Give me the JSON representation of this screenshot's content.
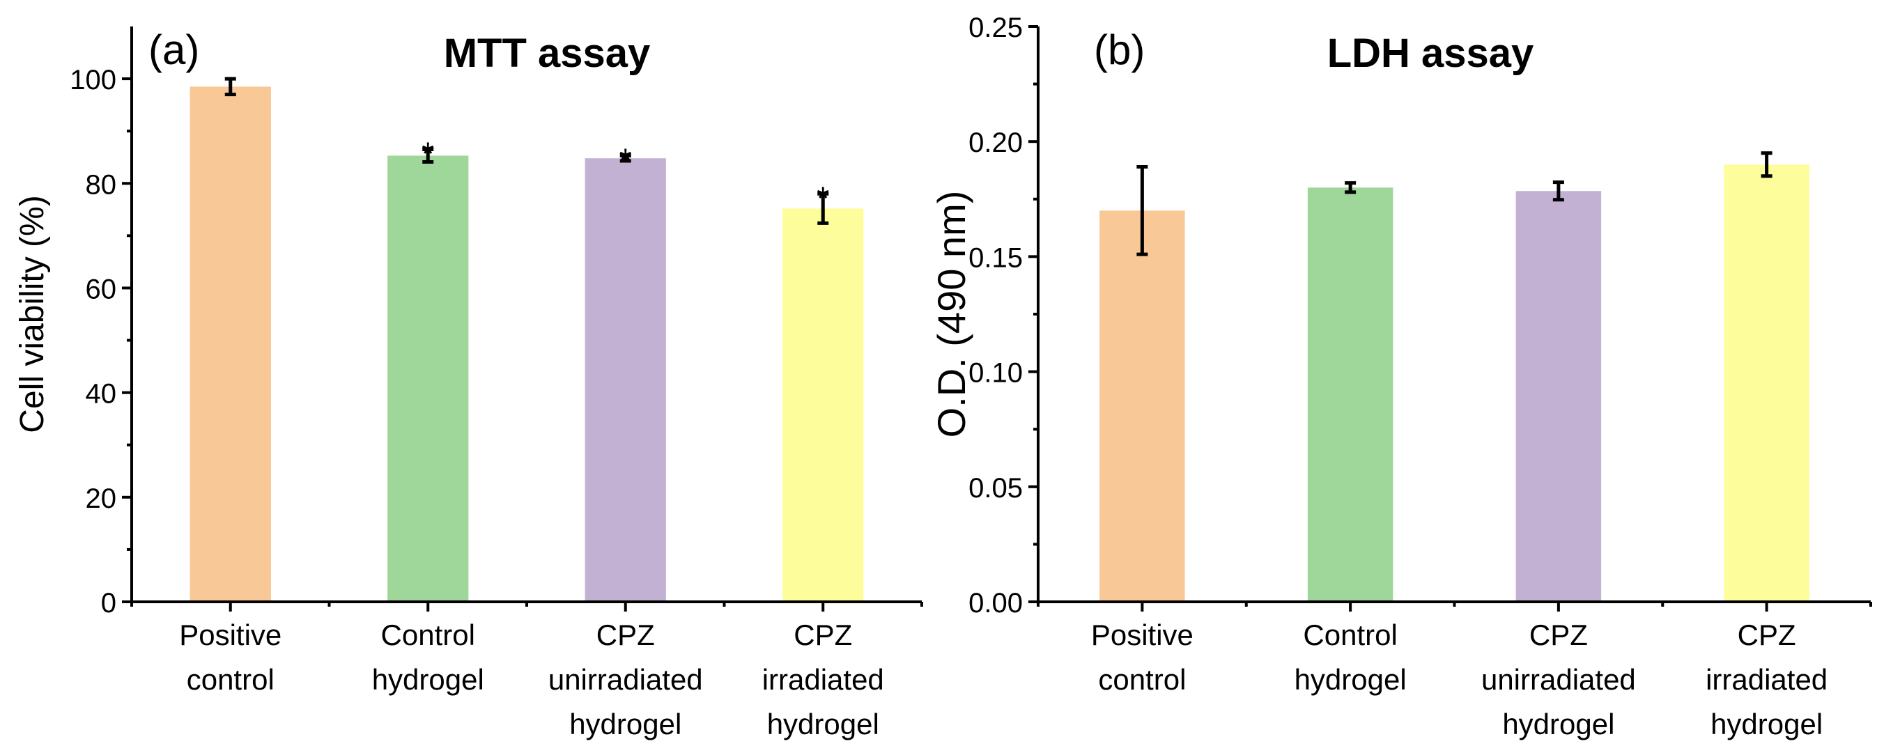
{
  "chart_data": [
    {
      "type": "bar",
      "panel_label": "(a)",
      "title": "MTT assay",
      "xlabel": "",
      "ylabel": "Cell viability (%)",
      "ylim": [
        0,
        110
      ],
      "yticks": [
        0,
        20,
        40,
        60,
        80,
        100
      ],
      "ytick_labels": [
        "0",
        "20",
        "40",
        "60",
        "80",
        "100"
      ],
      "categories": [
        [
          "Positive",
          "control"
        ],
        [
          "Control",
          "hydrogel"
        ],
        [
          "CPZ",
          "unirradiated",
          "hydrogel"
        ],
        [
          "CPZ",
          "irradiated",
          "hydrogel"
        ]
      ],
      "values": [
        98.5,
        85.3,
        84.8,
        75.2
      ],
      "errors": [
        1.5,
        1.2,
        0.5,
        2.8
      ],
      "annotations": [
        "",
        "*",
        "*",
        "*"
      ],
      "colors": [
        "#F9C897",
        "#9FD79B",
        "#C3B1D4",
        "#FDFD9B"
      ],
      "grid": false
    },
    {
      "type": "bar",
      "panel_label": "(b)",
      "title": "LDH assay",
      "xlabel": "",
      "ylabel": "O.D. (490 nm)",
      "ylim": [
        0,
        0.25
      ],
      "yticks": [
        0,
        0.05,
        0.1,
        0.15,
        0.2,
        0.25
      ],
      "ytick_labels": [
        "0.00",
        "0.05",
        "0.10",
        "0.15",
        "0.20",
        "0.25"
      ],
      "categories": [
        [
          "Positive",
          "control"
        ],
        [
          "Control",
          "hydrogel"
        ],
        [
          "CPZ",
          "unirradiated",
          "hydrogel"
        ],
        [
          "CPZ",
          "irradiated",
          "hydrogel"
        ]
      ],
      "values": [
        0.17,
        0.18,
        0.1785,
        0.19
      ],
      "errors": [
        0.019,
        0.002,
        0.0038,
        0.005
      ],
      "annotations": [
        "",
        "",
        "",
        ""
      ],
      "colors": [
        "#F9C897",
        "#9FD79B",
        "#C3B1D4",
        "#FDFD9B"
      ],
      "grid": false
    }
  ]
}
